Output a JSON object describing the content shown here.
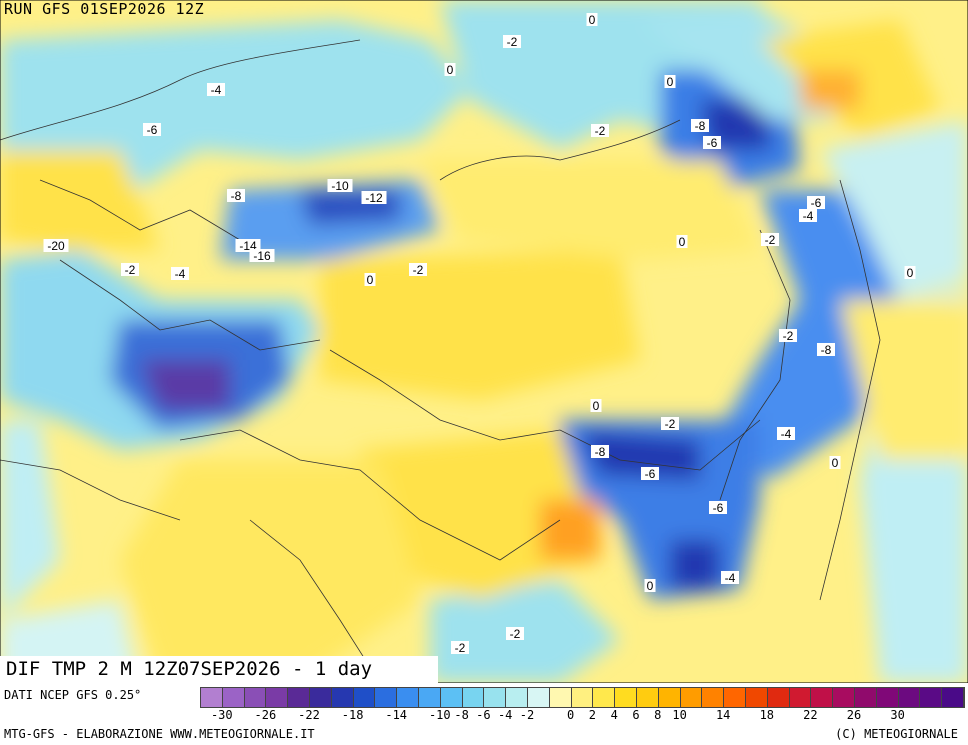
{
  "header": {
    "run_title": "RUN GFS 01SEP2026 12Z"
  },
  "map": {
    "title": "DIF TMP 2 M 12Z07SEP2026 - 1 day",
    "labels": [
      "0",
      "-2",
      "-4",
      "-6",
      "-8",
      "-10",
      "-12",
      "-14",
      "-16",
      "-20",
      "0",
      "-2",
      "0",
      "-2",
      "0",
      "-4",
      "-8",
      "-6",
      "-2",
      "-4",
      "-6",
      "-8",
      "-2",
      "0",
      "-2",
      "-4",
      "0",
      "-6",
      "0",
      "-2",
      "-8",
      "-6",
      "0",
      "-2",
      "-4",
      "0",
      "-2"
    ]
  },
  "legend": {
    "source": "DATI NCEP GFS 0.25°",
    "colors": [
      "#b27fd0",
      "#9b63c6",
      "#8a4fb6",
      "#7a3ba6",
      "#5a2a96",
      "#3a2b9c",
      "#2638b0",
      "#1f4fc8",
      "#2b6ee0",
      "#3a8ef0",
      "#4aa8f4",
      "#5cc0f4",
      "#78d4f0",
      "#98e2ee",
      "#b8eef0",
      "#d8f6f4",
      "#fff8b0",
      "#fff080",
      "#ffe84c",
      "#ffdc20",
      "#ffcc10",
      "#ffb400",
      "#ff9c00",
      "#ff8200",
      "#ff6600",
      "#f04800",
      "#e02a10",
      "#d01a30",
      "#c01048",
      "#a80c60",
      "#900a6c",
      "#800878",
      "#6c0a80",
      "#5a0a86",
      "#4a0a88"
    ],
    "ticks": [
      "-30",
      "-26",
      "-22",
      "-18",
      "-14",
      "-10",
      "-8",
      "-6",
      "-4",
      "-2",
      "0",
      "2",
      "4",
      "6",
      "8",
      "10",
      "14",
      "18",
      "22",
      "26",
      "30"
    ],
    "footer_left": "MTG-GFS - ELABORAZIONE WWW.METEOGIORNALE.IT",
    "footer_right": "(C) METEOGIORNALE"
  }
}
